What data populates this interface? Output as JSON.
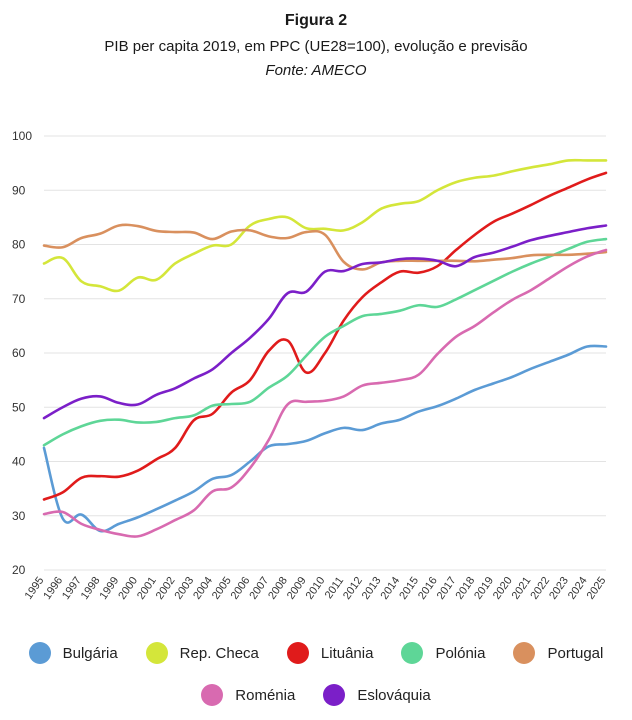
{
  "chart_data": {
    "type": "line",
    "title": "Figura 2",
    "subtitle": "PIB per capita 2019, em PPC (UE28=100), evolução e previsão",
    "source": "Fonte: AMECO",
    "xlabel": "",
    "ylabel": "",
    "ylim": [
      20,
      100
    ],
    "yticks": [
      20,
      30,
      40,
      50,
      60,
      70,
      80,
      90,
      100
    ],
    "grid": true,
    "legend_position": "bottom",
    "categories": [
      "1995",
      "1996",
      "1997",
      "1998",
      "1999",
      "2000",
      "2001",
      "2002",
      "2003",
      "2004",
      "2005",
      "2006",
      "2007",
      "2008",
      "2009",
      "2010",
      "2011",
      "2012",
      "2013",
      "2014",
      "2015",
      "2016",
      "2017",
      "2018",
      "2019",
      "2020",
      "2021",
      "2022",
      "2023",
      "2024",
      "2025"
    ],
    "series": [
      {
        "name": "Bulgária",
        "color": "#5b9bd5",
        "values": [
          42.5,
          29.5,
          30.2,
          27.2,
          28.5,
          29.7,
          31.2,
          32.8,
          34.5,
          36.8,
          37.5,
          40.0,
          42.8,
          43.2,
          43.8,
          45.2,
          46.2,
          45.8,
          47.0,
          47.7,
          49.2,
          50.2,
          51.6,
          53.2,
          54.4,
          55.6,
          57.1,
          58.4,
          59.7,
          61.2,
          61.2
        ]
      },
      {
        "name": "Rep. Checa",
        "color": "#d4e63a",
        "values": [
          76.5,
          77.5,
          73.2,
          72.3,
          71.5,
          73.9,
          73.5,
          76.5,
          78.3,
          79.8,
          80.0,
          83.5,
          84.7,
          85.0,
          83.0,
          82.9,
          82.6,
          84.1,
          86.6,
          87.5,
          88.0,
          90.0,
          91.5,
          92.3,
          92.7,
          93.5,
          94.2,
          94.8,
          95.5,
          95.5,
          95.5
        ]
      },
      {
        "name": "Lituânia",
        "color": "#e01b1b",
        "values": [
          33.0,
          34.3,
          37.0,
          37.3,
          37.2,
          38.3,
          40.4,
          42.5,
          47.6,
          48.8,
          52.7,
          55.0,
          60.4,
          62.3,
          56.4,
          60.0,
          66.0,
          70.3,
          73.0,
          75.0,
          74.8,
          76.0,
          79.0,
          81.8,
          84.2,
          85.7,
          87.3,
          89.0,
          90.5,
          92.0,
          93.2
        ]
      },
      {
        "name": "Polónia",
        "color": "#5ed697",
        "values": [
          43.0,
          45.0,
          46.5,
          47.5,
          47.7,
          47.2,
          47.3,
          48.0,
          48.5,
          50.3,
          50.6,
          51.0,
          53.6,
          55.8,
          59.5,
          63.0,
          65.0,
          66.8,
          67.2,
          67.8,
          68.8,
          68.5,
          69.9,
          71.6,
          73.3,
          75.0,
          76.5,
          77.8,
          79.2,
          80.5,
          81.0
        ]
      },
      {
        "name": "Portugal",
        "color": "#d9905e",
        "values": [
          79.8,
          79.5,
          81.2,
          82.0,
          83.5,
          83.4,
          82.5,
          82.3,
          82.2,
          81.0,
          82.4,
          82.6,
          81.5,
          81.2,
          82.3,
          81.8,
          76.8,
          75.4,
          76.7,
          77.0,
          77.0,
          77.0,
          77.0,
          76.9,
          77.2,
          77.5,
          78.0,
          78.1,
          78.1,
          78.3,
          78.6
        ]
      },
      {
        "name": "Roménia",
        "color": "#d86ab0",
        "values": [
          30.3,
          30.7,
          28.5,
          27.4,
          26.6,
          26.2,
          27.5,
          29.2,
          31.0,
          34.5,
          35.2,
          38.8,
          44.0,
          50.5,
          51.0,
          51.2,
          52.0,
          54.0,
          54.5,
          55.0,
          56.0,
          59.8,
          63.0,
          65.0,
          67.5,
          69.8,
          71.6,
          73.8,
          76.0,
          77.8,
          79.0
        ]
      },
      {
        "name": "Eslováquia",
        "color": "#7b1fc8",
        "values": [
          48.0,
          50.0,
          51.6,
          52.0,
          50.8,
          50.5,
          52.3,
          53.5,
          55.3,
          57.0,
          60.0,
          62.8,
          66.3,
          71.0,
          71.3,
          75.0,
          75.1,
          76.4,
          76.7,
          77.3,
          77.4,
          77.0,
          76.0,
          77.7,
          78.5,
          79.6,
          80.8,
          81.6,
          82.3,
          83.0,
          83.5
        ]
      }
    ]
  }
}
